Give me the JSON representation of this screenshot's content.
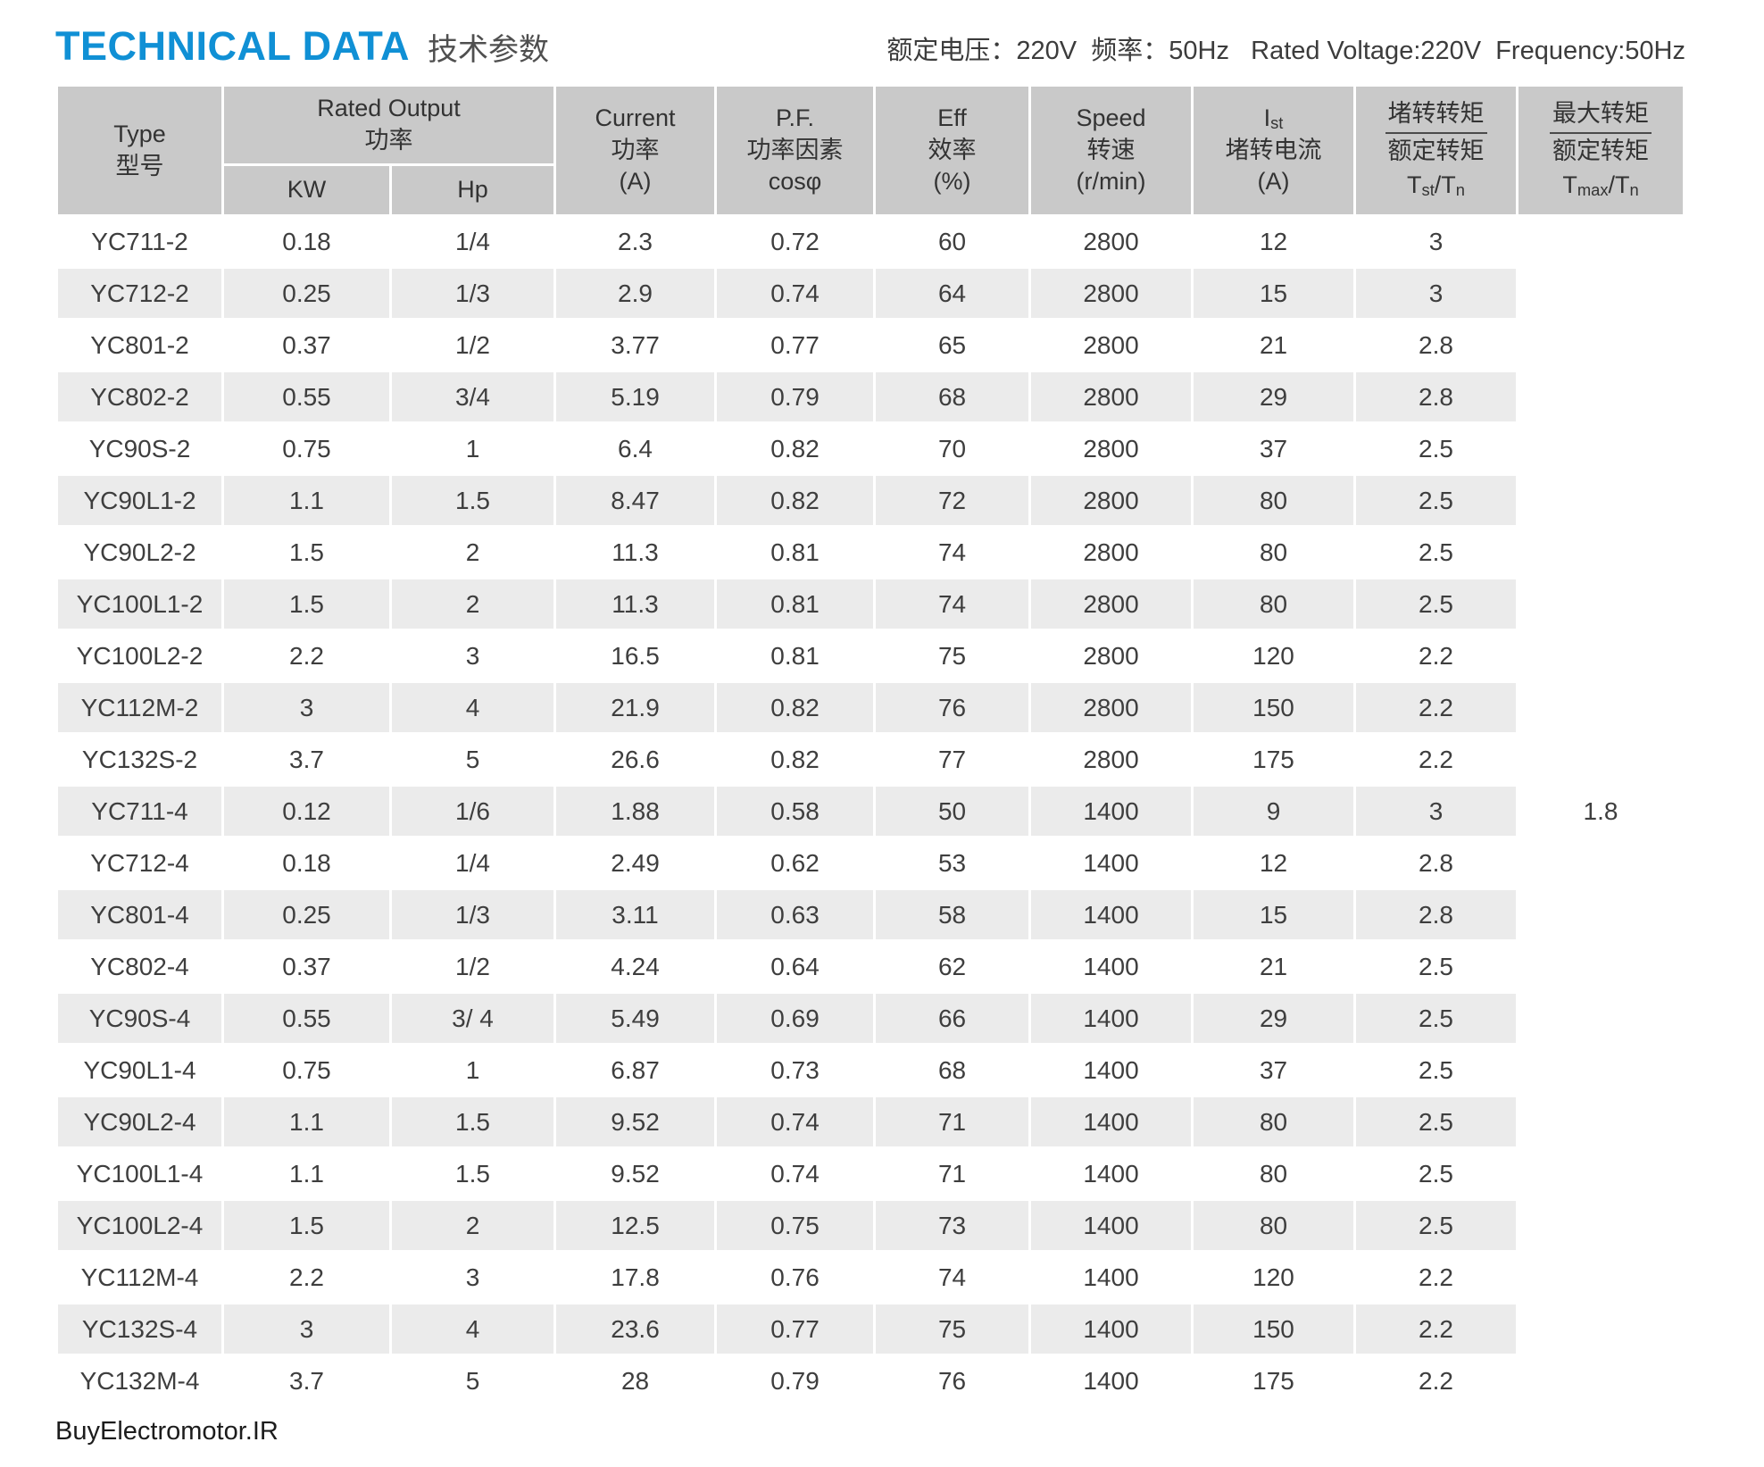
{
  "page": {
    "title_en": "TECHNICAL DATA",
    "title_zh": "技术参数",
    "rating_info": "额定电压：220V  频率：50Hz   Rated Voltage:220V  Frequency:50Hz",
    "footer": "BuyElectromotor.IR"
  },
  "colors": {
    "accent_blue": "#1090d5",
    "header_gray": "#c9c9c9",
    "stripe_gray": "#ebebeb",
    "text_dark": "#3e3e3e"
  },
  "table": {
    "headers": {
      "type": {
        "line1": "Type",
        "line2": "型号"
      },
      "rated_output": {
        "line1": "Rated Output",
        "line2": "功率",
        "sub_kw": "KW",
        "sub_hp": "Hp"
      },
      "current": {
        "line1": "Current",
        "line2": "功率",
        "line3": "(A)"
      },
      "pf": {
        "line1": "P.F.",
        "line2": "功率因素",
        "line3": "cosφ"
      },
      "eff": {
        "line1": "Eff",
        "line2": "效率",
        "line3": "(%)"
      },
      "speed": {
        "line1": "Speed",
        "line2": "转速",
        "line3": "(r/min)"
      },
      "ist": {
        "main": "I",
        "sub": "st",
        "line2": "堵转电流",
        "line3": "(A)"
      },
      "tst": {
        "numerator": "堵转转矩",
        "denominator": "额定转矩",
        "t1": "T",
        "s1": "st",
        "t2": "/T",
        "s2": "n"
      },
      "tmax": {
        "numerator": "最大转矩",
        "denominator": "额定转矩",
        "t1": "T",
        "s1": "max",
        "t2": "/T",
        "s2": "n"
      }
    },
    "tmax_tn_value": "1.8",
    "rows": [
      [
        "YC711-2",
        "0.18",
        "1/4",
        "2.3",
        "0.72",
        "60",
        "2800",
        "12",
        "3"
      ],
      [
        "YC712-2",
        "0.25",
        "1/3",
        "2.9",
        "0.74",
        "64",
        "2800",
        "15",
        "3"
      ],
      [
        "YC801-2",
        "0.37",
        "1/2",
        "3.77",
        "0.77",
        "65",
        "2800",
        "21",
        "2.8"
      ],
      [
        "YC802-2",
        "0.55",
        "3/4",
        "5.19",
        "0.79",
        "68",
        "2800",
        "29",
        "2.8"
      ],
      [
        "YC90S-2",
        "0.75",
        "1",
        "6.4",
        "0.82",
        "70",
        "2800",
        "37",
        "2.5"
      ],
      [
        "YC90L1-2",
        "1.1",
        "1.5",
        "8.47",
        "0.82",
        "72",
        "2800",
        "80",
        "2.5"
      ],
      [
        "YC90L2-2",
        "1.5",
        "2",
        "11.3",
        "0.81",
        "74",
        "2800",
        "80",
        "2.5"
      ],
      [
        "YC100L1-2",
        "1.5",
        "2",
        "11.3",
        "0.81",
        "74",
        "2800",
        "80",
        "2.5"
      ],
      [
        "YC100L2-2",
        "2.2",
        "3",
        "16.5",
        "0.81",
        "75",
        "2800",
        "120",
        "2.2"
      ],
      [
        "YC112M-2",
        "3",
        "4",
        "21.9",
        "0.82",
        "76",
        "2800",
        "150",
        "2.2"
      ],
      [
        "YC132S-2",
        "3.7",
        "5",
        "26.6",
        "0.82",
        "77",
        "2800",
        "175",
        "2.2"
      ],
      [
        "YC711-4",
        "0.12",
        "1/6",
        "1.88",
        "0.58",
        "50",
        "1400",
        "9",
        "3"
      ],
      [
        "YC712-4",
        "0.18",
        "1/4",
        "2.49",
        "0.62",
        "53",
        "1400",
        "12",
        "2.8"
      ],
      [
        "YC801-4",
        "0.25",
        "1/3",
        "3.11",
        "0.63",
        "58",
        "1400",
        "15",
        "2.8"
      ],
      [
        "YC802-4",
        "0.37",
        "1/2",
        "4.24",
        "0.64",
        "62",
        "1400",
        "21",
        "2.5"
      ],
      [
        "YC90S-4",
        "0.55",
        "3/ 4",
        "5.49",
        "0.69",
        "66",
        "1400",
        "29",
        "2.5"
      ],
      [
        "YC90L1-4",
        "0.75",
        "1",
        "6.87",
        "0.73",
        "68",
        "1400",
        "37",
        "2.5"
      ],
      [
        "YC90L2-4",
        "1.1",
        "1.5",
        "9.52",
        "0.74",
        "71",
        "1400",
        "80",
        "2.5"
      ],
      [
        "YC100L1-4",
        "1.1",
        "1.5",
        "9.52",
        "0.74",
        "71",
        "1400",
        "80",
        "2.5"
      ],
      [
        "YC100L2-4",
        "1.5",
        "2",
        "12.5",
        "0.75",
        "73",
        "1400",
        "80",
        "2.5"
      ],
      [
        "YC112M-4",
        "2.2",
        "3",
        "17.8",
        "0.76",
        "74",
        "1400",
        "120",
        "2.2"
      ],
      [
        "YC132S-4",
        "3",
        "4",
        "23.6",
        "0.77",
        "75",
        "1400",
        "150",
        "2.2"
      ],
      [
        "YC132M-4",
        "3.7",
        "5",
        "28",
        "0.79",
        "76",
        "1400",
        "175",
        "2.2"
      ]
    ]
  }
}
